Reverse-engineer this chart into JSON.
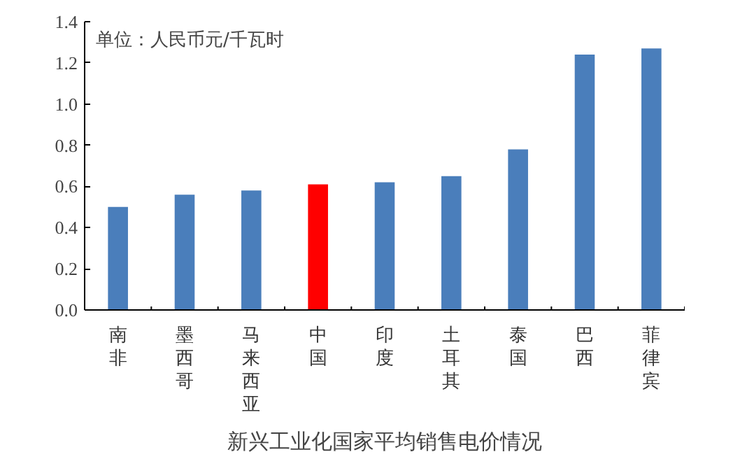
{
  "chart_data": {
    "type": "bar",
    "title": "新兴工业化国家平均销售电价情况",
    "categories": [
      "南非",
      "墨西哥",
      "马来西亚",
      "中国",
      "印度",
      "土耳其",
      "泰国",
      "巴西",
      "菲律宾"
    ],
    "values": [
      0.5,
      0.56,
      0.58,
      0.61,
      0.62,
      0.65,
      0.78,
      1.24,
      1.27
    ],
    "colors": [
      "#4a7ebb",
      "#4a7ebb",
      "#4a7ebb",
      "#ff0000",
      "#4a7ebb",
      "#4a7ebb",
      "#4a7ebb",
      "#4a7ebb",
      "#4a7ebb"
    ],
    "ylim": [
      0,
      1.4
    ],
    "yticks": [
      {
        "value": 0,
        "label": "0.0"
      },
      {
        "value": 0.2,
        "label": "0.2"
      },
      {
        "value": 0.4,
        "label": "0.4"
      },
      {
        "value": 0.6,
        "label": "0.6"
      },
      {
        "value": 0.8,
        "label": "0.8"
      },
      {
        "value": 1.0,
        "label": "1.0"
      },
      {
        "value": 1.2,
        "label": "1.2"
      },
      {
        "value": 1.4,
        "label": "1.4"
      }
    ],
    "annotations": [
      "单位：人民币元/千瓦时"
    ],
    "grid": false
  }
}
